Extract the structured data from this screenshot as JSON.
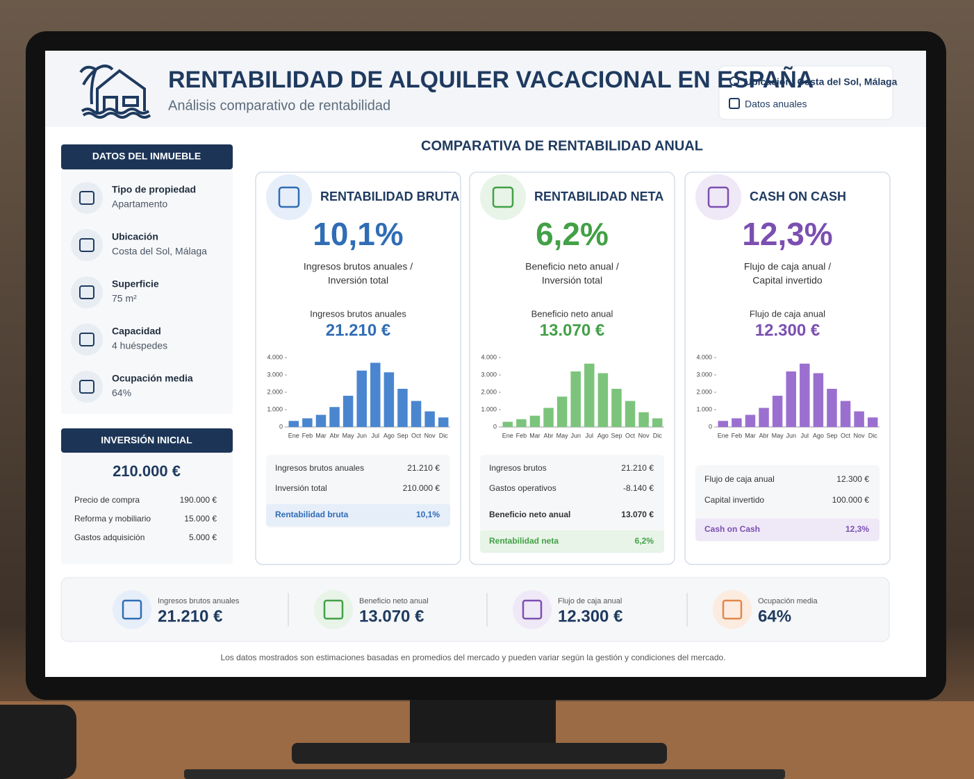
{
  "header": {
    "title": "RENTABILIDAD DE ALQUILER VACACIONAL EN ESPAÑA",
    "subtitle": "Análisis comparativo de rentabilidad",
    "location": "Ubicación: Costa del Sol, Málaga",
    "period": "Datos anuales"
  },
  "property": {
    "title": "DATOS DEL INMUEBLE",
    "items": [
      {
        "label": "Tipo de propiedad",
        "value": "Apartamento"
      },
      {
        "label": "Ubicación",
        "value": "Costa del Sol, Málaga"
      },
      {
        "label": "Superficie",
        "value": "75 m²"
      },
      {
        "label": "Capacidad",
        "value": "4 huéspedes"
      },
      {
        "label": "Ocupación media",
        "value": "64%"
      }
    ]
  },
  "investment": {
    "title": "INVERSIÓN INICIAL",
    "total": "210.000 €",
    "rows": [
      [
        "Precio de compra",
        "190.000 €"
      ],
      [
        "Reforma y mobiliario",
        "15.000 €"
      ],
      [
        "Gastos adquisición",
        "5.000 €"
      ]
    ]
  },
  "section_title": "COMPARATIVA DE RENTABILIDAD ANUAL",
  "cards": [
    {
      "title": "RENTABILIDAD BRUTA",
      "value": "10,1%",
      "formula": [
        "Ingresos brutos anuales /",
        "Inversión total"
      ],
      "amount_label": "Ingresos brutos anuales",
      "amount": "21.210 €",
      "rows": [
        [
          "Ingresos brutos anuales",
          "21.210 €"
        ],
        [
          "Inversión total",
          "210.000 €"
        ]
      ],
      "result": [
        "Rentabilidad bruta",
        "10,1%"
      ]
    },
    {
      "title": "RENTABILIDAD NETA",
      "value": "6,2%",
      "formula": [
        "Beneficio neto anual /",
        "Inversión total"
      ],
      "amount_label": "Beneficio neto anual",
      "amount": "13.070 €",
      "rows": [
        [
          "Ingresos brutos",
          "21.210 €"
        ],
        [
          "Gastos operativos",
          "-8.140 €"
        ],
        [
          "Beneficio neto anual",
          "13.070 €"
        ]
      ],
      "result": [
        "Rentabilidad neta",
        "6,2%"
      ]
    },
    {
      "title": "CASH ON CASH",
      "value": "12,3%",
      "formula": [
        "Flujo de caja anual /",
        "Capital invertido"
      ],
      "amount_label": "Flujo de caja anual",
      "amount": "12.300 €",
      "rows": [
        [
          "Flujo de caja anual",
          "12.300 €"
        ],
        [
          "Capital invertido",
          "100.000 €"
        ]
      ],
      "result": [
        "Cash on Cash",
        "12,3%"
      ]
    }
  ],
  "chart_data": [
    {
      "type": "bar",
      "categories": [
        "Ene",
        "Feb",
        "Mar",
        "Abr",
        "May",
        "Jun",
        "Jul",
        "Ago",
        "Sep",
        "Oct",
        "Nov",
        "Dic"
      ],
      "values": [
        350,
        500,
        700,
        1150,
        1800,
        3250,
        3700,
        3150,
        2200,
        1500,
        900,
        550
      ],
      "color": "#4a86d0",
      "ylim": [
        0,
        4000
      ],
      "yticks": [
        0,
        {
          "value": 1000,
          "label": "1.000"
        },
        {
          "value": 2000,
          "label": "2.000"
        },
        {
          "value": 3000,
          "label": "3.000"
        },
        {
          "value": 4000,
          "label": "4.000"
        }
      ]
    },
    {
      "type": "bar",
      "categories": [
        "Ene",
        "Feb",
        "Mar",
        "Abr",
        "May",
        "Jun",
        "Jul",
        "Ago",
        "Sep",
        "Oct",
        "Nov",
        "Dic"
      ],
      "values": [
        300,
        450,
        650,
        1100,
        1750,
        3200,
        3650,
        3100,
        2200,
        1500,
        850,
        500
      ],
      "color": "#7cc47c",
      "ylim": [
        0,
        4000
      ],
      "yticks": [
        0,
        {
          "value": 1000,
          "label": "1.000"
        },
        {
          "value": 2000,
          "label": "2.000"
        },
        {
          "value": 3000,
          "label": "3.000"
        },
        {
          "value": 4000,
          "label": "4.000"
        }
      ]
    },
    {
      "type": "bar",
      "categories": [
        "Ene",
        "Feb",
        "Mar",
        "Abr",
        "May",
        "Jun",
        "Jul",
        "Ago",
        "Sep",
        "Oct",
        "Nov",
        "Dic"
      ],
      "values": [
        350,
        500,
        700,
        1100,
        1800,
        3200,
        3650,
        3100,
        2200,
        1500,
        900,
        550
      ],
      "color": "#9b6fd0",
      "ylim": [
        0,
        4000
      ],
      "yticks": [
        0,
        {
          "value": 1000,
          "label": "1.000"
        },
        {
          "value": 2000,
          "label": "2.000"
        },
        {
          "value": 3000,
          "label": "3.000"
        },
        {
          "value": 4000,
          "label": "4.000"
        }
      ]
    }
  ],
  "summary": [
    {
      "label": "Ingresos brutos anuales",
      "value": "21.210 €"
    },
    {
      "label": "Beneficio neto anual",
      "value": "13.070 €"
    },
    {
      "label": "Flujo de caja anual",
      "value": "12.300 €"
    },
    {
      "label": "Ocupación media",
      "value": "64%"
    }
  ],
  "footnote": "Los datos mostrados son estimaciones basadas en promedios del mercado y pueden variar según la gestión y condiciones del mercado."
}
